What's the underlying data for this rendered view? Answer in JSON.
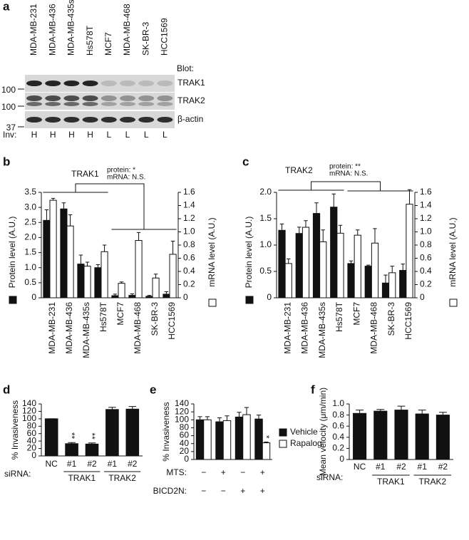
{
  "blot": {
    "panel_label": "a",
    "lanes": [
      "MDA-MB-231",
      "MDA-MB-436",
      "MDA-MB-435s",
      "Hs578T",
      "MCF7",
      "MDA-MB-468",
      "SK-BR-3",
      "HCC1569"
    ],
    "blot_header": "Blot:",
    "rows": [
      "TRAK1",
      "TRAK2",
      "β-actin"
    ],
    "markers": [
      100,
      100,
      37
    ],
    "inv_header": "Inv:",
    "invasiveness": [
      "H",
      "H",
      "H",
      "H",
      "L",
      "L",
      "L",
      "L"
    ]
  },
  "chart_data": [
    {
      "type": "bar",
      "panel_label": "b",
      "title": "TRAK1",
      "stats": [
        "protein: *",
        "mRNA: N.S."
      ],
      "categories": [
        "MDA-MB-231",
        "MDA-MB-436",
        "MDA-MB-435s",
        "Hs578T",
        "MCF7",
        "MDA-MB-468",
        "SK-BR-3",
        "HCC1569"
      ],
      "series": [
        {
          "color": "#111111",
          "values": [
            2.57,
            2.95,
            1.12,
            1.0,
            0.07,
            0.08,
            0.05,
            0.12
          ],
          "errors": [
            0.35,
            0.2,
            0.3,
            0.1,
            0.05,
            0.05,
            0.03,
            0.08
          ]
        },
        {
          "color": "#ffffff",
          "axis": "y2",
          "values": [
            1.48,
            1.09,
            0.48,
            0.7,
            0.22,
            0.87,
            0.3,
            0.66
          ],
          "errors": [
            0.03,
            0.17,
            0.06,
            0.1,
            0.02,
            0.12,
            0.06,
            0.2
          ]
        }
      ],
      "ylabel": "Protein level (A.U.)",
      "y2label": "mRNA level (A.U.)",
      "ylim": [
        0,
        3.5
      ],
      "yticks": [
        0,
        0.5,
        {
          "value": 1,
          "label": "1.0"
        },
        1.5,
        {
          "value": 2,
          "label": "2.0"
        },
        2.5,
        {
          "value": 3,
          "label": "3.0"
        },
        3.5
      ],
      "y2lim": [
        0,
        1.6
      ],
      "y2ticks": [
        0,
        0.2,
        0.4,
        0.6,
        0.8,
        {
          "value": 1,
          "label": "1.0"
        },
        1.2,
        1.4,
        1.6
      ]
    },
    {
      "type": "bar",
      "panel_label": "c",
      "title": "TRAK2",
      "stats": [
        "protein: **",
        "mRNA: N.S."
      ],
      "categories": [
        "MDA-MB-231",
        "MDA-MB-436",
        "MDA-MB-435s",
        "Hs578T",
        "MCF7",
        "MDA-MB-468",
        "SK-BR-3",
        "HCC1569"
      ],
      "series": [
        {
          "color": "#111111",
          "values": [
            1.28,
            1.22,
            1.6,
            1.72,
            0.65,
            0.6,
            0.28,
            0.52
          ],
          "errors": [
            0.12,
            0.12,
            0.2,
            0.25,
            0.05,
            0.02,
            0.15,
            0.12
          ]
        },
        {
          "color": "#ffffff",
          "axis": "y2",
          "values": [
            0.52,
            1.07,
            0.85,
            0.98,
            0.95,
            0.83,
            0.38,
            1.42
          ],
          "errors": [
            0.07,
            0.1,
            0.18,
            0.12,
            0.08,
            0.22,
            0.1,
            0.22
          ]
        }
      ],
      "ylabel": "Protein level (A.U.)",
      "y2label": "mRNA level (A.U.)",
      "ylim": [
        0,
        2
      ],
      "yticks": [
        0,
        0.5,
        {
          "value": 1,
          "label": "1.0"
        },
        1.5,
        {
          "value": 2,
          "label": "2.0"
        }
      ],
      "y2lim": [
        0,
        1.6
      ],
      "y2ticks": [
        0,
        0.2,
        0.4,
        0.6,
        0.8,
        {
          "value": 1,
          "label": "1.0"
        },
        1.2,
        1.4,
        1.6
      ]
    },
    {
      "type": "bar",
      "panel_label": "d",
      "x_prefix": "siRNA:",
      "categories": [
        "NC",
        "#1",
        "#2",
        "#1",
        "#2"
      ],
      "category_groups": [
        null,
        "TRAK1",
        "TRAK1",
        "TRAK2",
        "TRAK2"
      ],
      "series": [
        {
          "color": "#111111",
          "values": [
            100,
            33,
            32,
            125,
            126
          ],
          "errors": [
            0,
            3,
            3,
            6,
            7
          ]
        }
      ],
      "annotations": [
        {
          "text": "**",
          "category": 1
        },
        {
          "text": "**",
          "category": 2
        }
      ],
      "ylabel": "% Invasiveness",
      "ylim": [
        0,
        140
      ],
      "yticks": [
        0,
        20,
        40,
        60,
        80,
        100,
        120,
        140
      ]
    },
    {
      "type": "bar",
      "panel_label": "e",
      "categories": [
        null,
        null,
        null,
        null
      ],
      "conditions": [
        {
          "label": "MTS:",
          "values": [
            "−",
            "+",
            "−",
            "+"
          ]
        },
        {
          "label": "BICD2N:",
          "values": [
            "−",
            "−",
            "+",
            "+"
          ]
        }
      ],
      "series": [
        {
          "name": "Vehicle",
          "color": "#111111",
          "values": [
            100,
            95,
            107,
            102
          ],
          "errors": [
            8,
            10,
            12,
            10
          ]
        },
        {
          "name": "Rapalog",
          "color": "#ffffff",
          "values": [
            100,
            98,
            113,
            42
          ],
          "errors": [
            8,
            12,
            18,
            2
          ]
        }
      ],
      "annotations": [
        {
          "text": "*",
          "category": 3,
          "series": 1
        }
      ],
      "ylabel": "% Invasiveness",
      "ylim": [
        0,
        140
      ],
      "yticks": [
        0,
        20,
        40,
        60,
        80,
        100,
        120,
        140
      ]
    },
    {
      "type": "bar",
      "panel_label": "f",
      "x_prefix": "siRNA:",
      "categories": [
        "NC",
        "#1",
        "#2",
        "#1",
        "#2"
      ],
      "category_groups": [
        null,
        "TRAK1",
        "TRAK1",
        "TRAK2",
        "TRAK2"
      ],
      "series": [
        {
          "color": "#111111",
          "values": [
            0.83,
            0.87,
            0.89,
            0.82,
            0.8
          ],
          "errors": [
            0.06,
            0.03,
            0.07,
            0.07,
            0.05
          ]
        }
      ],
      "ylabel": "Mean velocity (μm/min)",
      "ylim": [
        0,
        1
      ],
      "yticks": [
        0,
        0.2,
        0.4,
        0.6,
        0.8,
        {
          "value": 1,
          "label": "1.0"
        }
      ]
    }
  ]
}
